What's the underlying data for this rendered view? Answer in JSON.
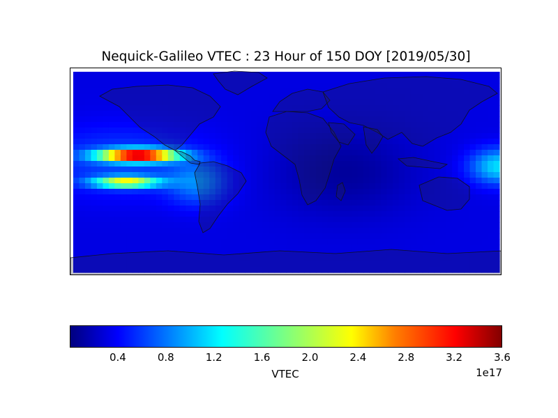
{
  "title": "Nequick-Galileo VTEC : 23 Hour of 150 DOY [2019/05/30]",
  "chart_data": {
    "type": "heatmap",
    "title": "Nequick-Galileo VTEC : 23 Hour of 150 DOY [2019/05/30]",
    "projection": "equirectangular world map with coastlines and country borders",
    "colormap": "jet",
    "colorbar": {
      "label": "VTEC",
      "orientation": "horizontal",
      "range": [
        0,
        3.6e+17
      ],
      "ticks": [
        "0.4",
        "0.8",
        "1.2",
        "1.6",
        "2.0",
        "2.4",
        "2.8",
        "3.2",
        "3.6"
      ],
      "tick_values": [
        0.4,
        0.8,
        1.2,
        1.6,
        2.0,
        2.4,
        2.8,
        3.2,
        3.6
      ],
      "exponent_label": "1e17"
    },
    "field_features": [
      {
        "feature": "equatorial anomaly crest (northern), eastern Pacific / Central America",
        "lon_range": [
          -170,
          -95
        ],
        "lat_range": [
          10,
          20
        ],
        "peak_value": 3.5e+17
      },
      {
        "feature": "equatorial anomaly crest (southern), eastern Pacific",
        "lon_range": [
          -160,
          -120
        ],
        "lat_range": [
          -15,
          -5
        ],
        "peak_value": 2.3e+17
      },
      {
        "feature": "western Pacific elevated band",
        "lon_range": [
          155,
          180
        ],
        "lat_range": [
          -15,
          25
        ],
        "peak_value": 1.6e+17
      },
      {
        "feature": "night-side minimum, Africa / Indian Ocean",
        "lon_range": [
          0,
          100
        ],
        "lat_range": [
          -40,
          40
        ],
        "peak_value": 1e+16
      }
    ]
  },
  "colors": {
    "jet_stops": [
      "#00007f",
      "#0000ff",
      "#007fff",
      "#00ffff",
      "#7fff7f",
      "#ffff00",
      "#ff7f00",
      "#ff0000",
      "#7f0000"
    ]
  }
}
